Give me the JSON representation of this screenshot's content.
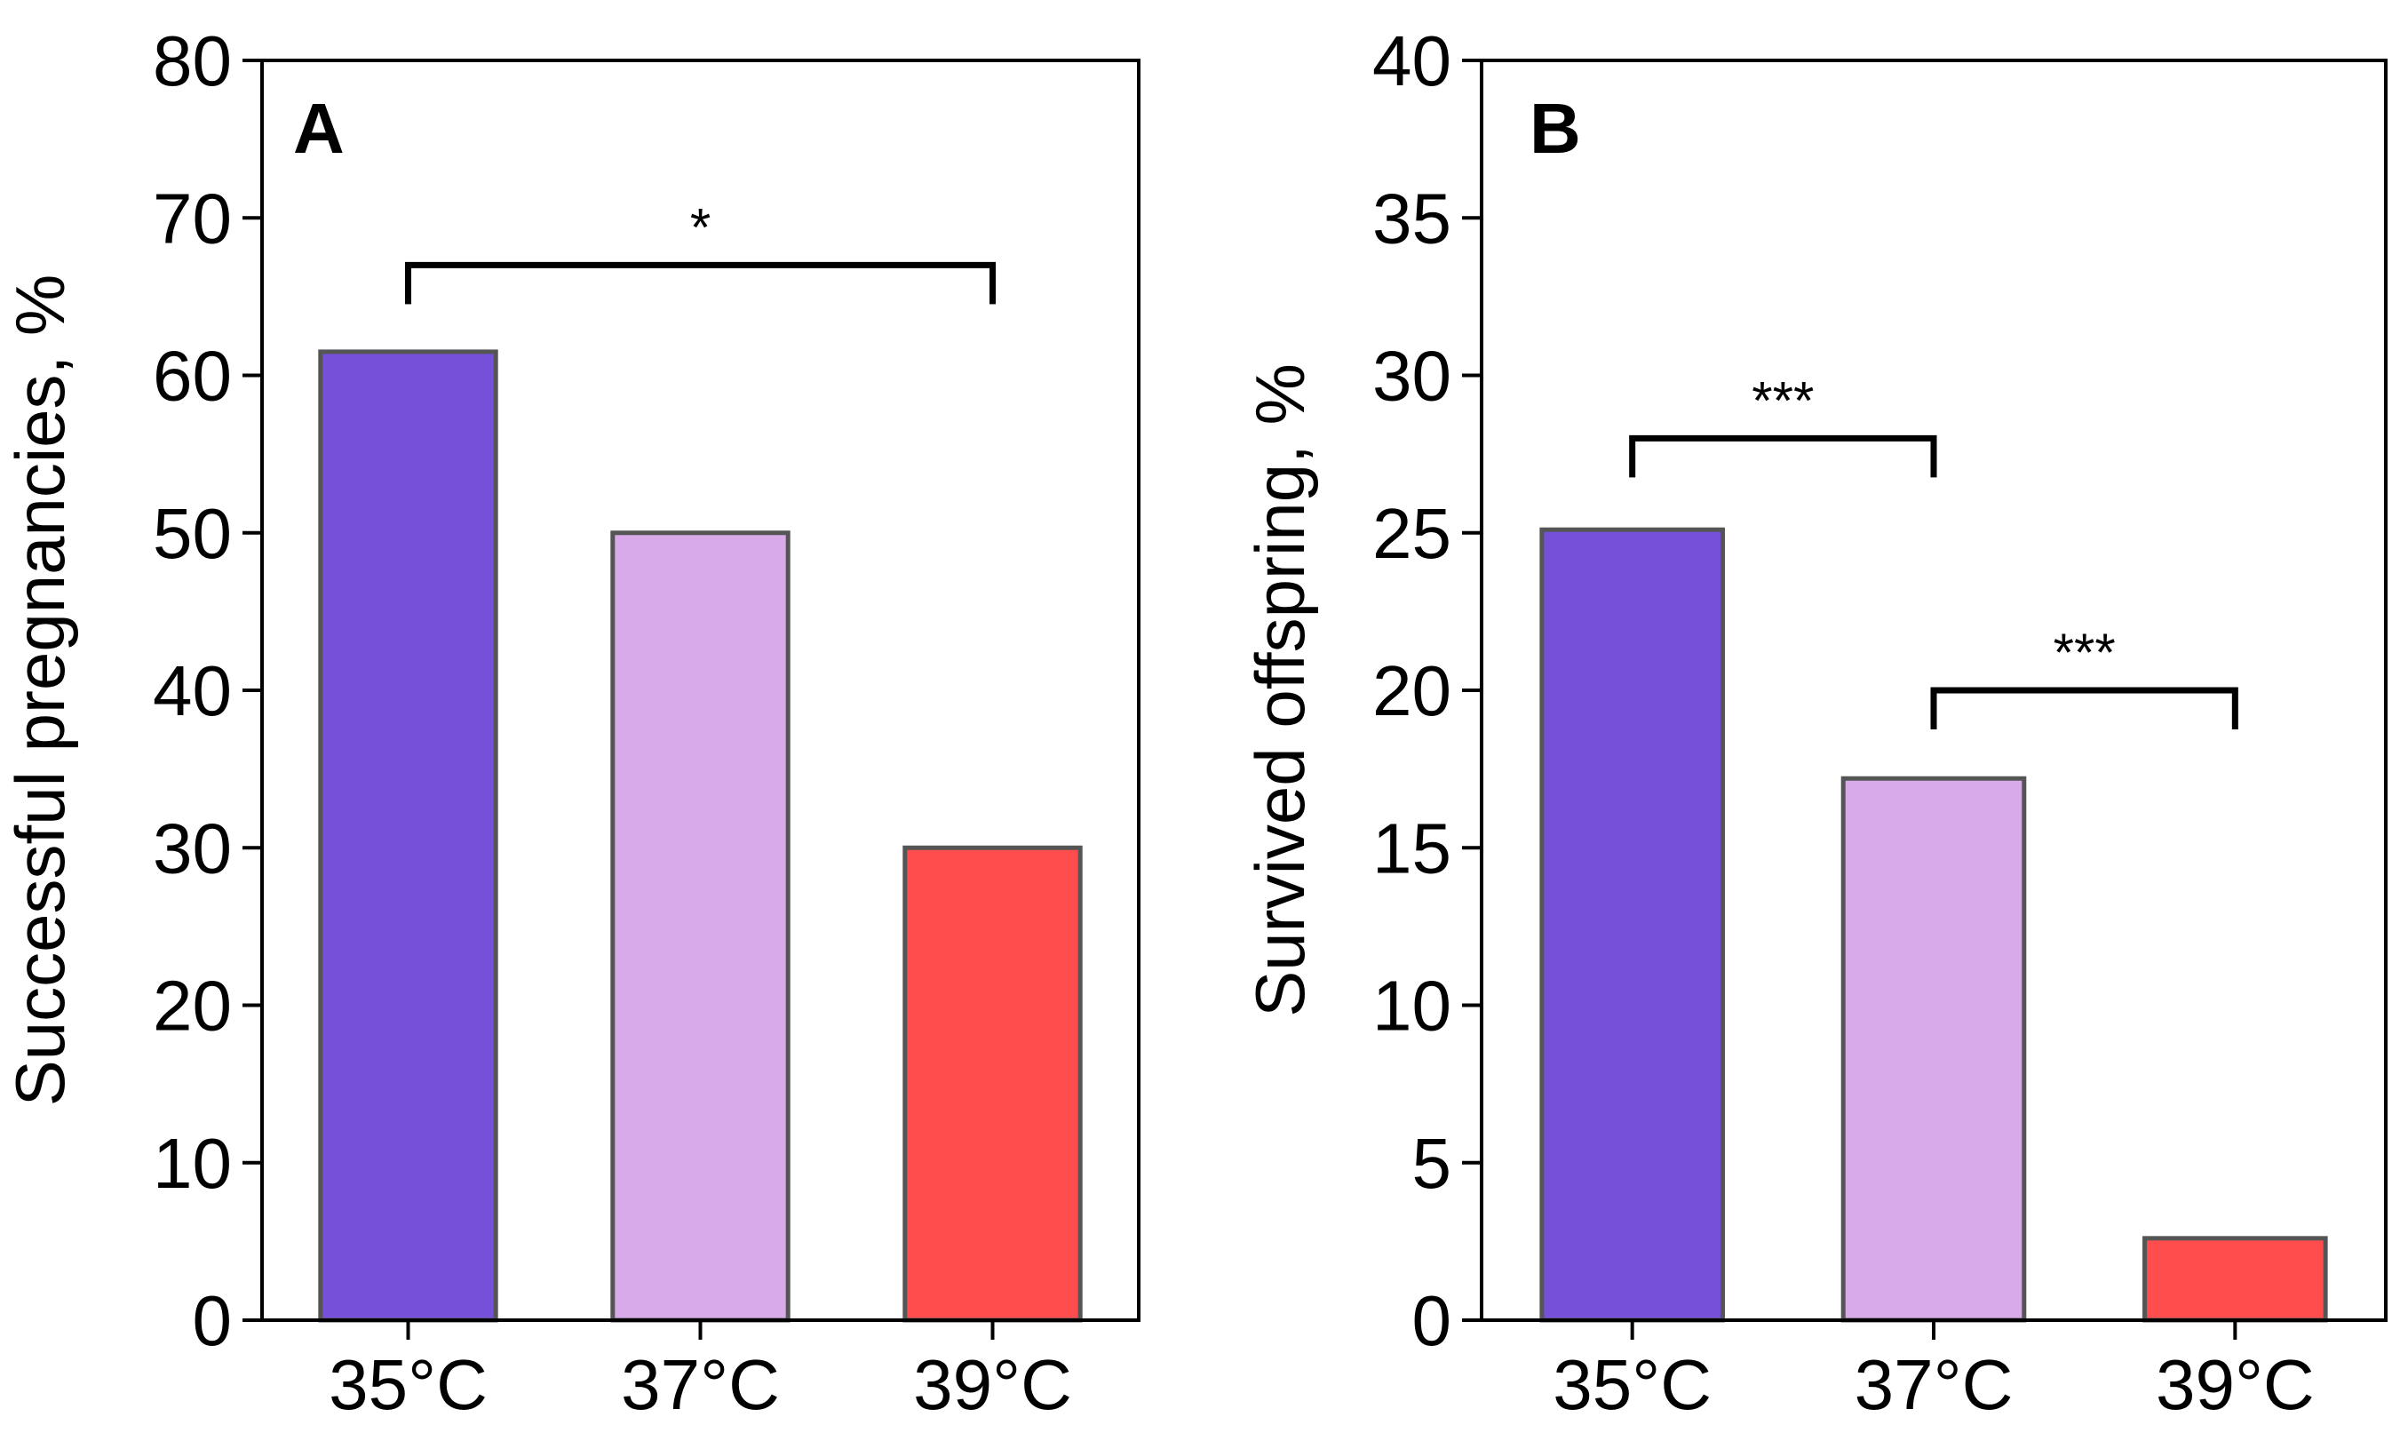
{
  "chart_data": [
    {
      "panel": "A",
      "type": "bar",
      "categories": [
        "35°C",
        "37°C",
        "39°C"
      ],
      "values": [
        61.5,
        50,
        30
      ],
      "colors": [
        "#7650d8",
        "#d9aaea",
        "#ff4d4d"
      ],
      "ylabel": "Successful pregnancies, %",
      "xlabel": "",
      "ylim": [
        0,
        80
      ],
      "yticks": [
        0,
        10,
        20,
        30,
        40,
        50,
        60,
        70,
        80
      ],
      "significance": [
        {
          "from": 0,
          "to": 2,
          "label": "*",
          "y": 67
        }
      ]
    },
    {
      "panel": "B",
      "type": "bar",
      "categories": [
        "35°C",
        "37°C",
        "39°C"
      ],
      "values": [
        25.1,
        17.2,
        2.6
      ],
      "colors": [
        "#7650d8",
        "#d9aaea",
        "#ff4d4d"
      ],
      "ylabel": "Survived offspring, %",
      "xlabel": "",
      "ylim": [
        0,
        40
      ],
      "yticks": [
        0,
        5,
        10,
        15,
        20,
        25,
        30,
        35,
        40
      ],
      "significance": [
        {
          "from": 0,
          "to": 1,
          "label": "***",
          "y": 28
        },
        {
          "from": 1,
          "to": 2,
          "label": "***",
          "y": 20
        }
      ]
    }
  ],
  "colors": {
    "bar_edge": "#555555",
    "axis": "#000000"
  }
}
